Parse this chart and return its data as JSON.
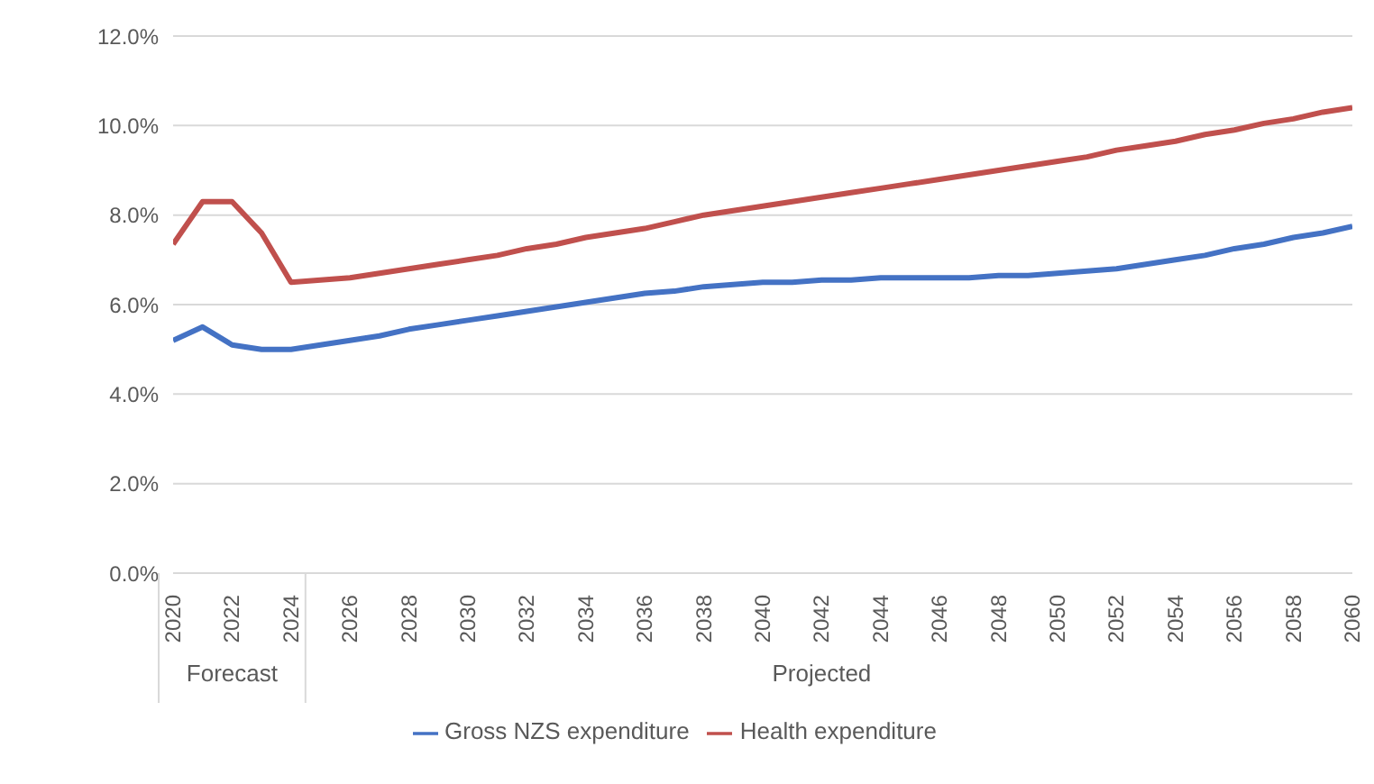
{
  "chart_data": {
    "type": "line",
    "categories": [
      "2020",
      null,
      "2022",
      null,
      "2024",
      null,
      "2026",
      null,
      "2028",
      null,
      "2030",
      null,
      "2032",
      null,
      "2034",
      null,
      "2036",
      null,
      "2038",
      null,
      "2040",
      null,
      "2042",
      null,
      "2044",
      null,
      "2046",
      null,
      "2048",
      null,
      "2050",
      null,
      "2052",
      null,
      "2054",
      null,
      "2056",
      null,
      "2058",
      null,
      "2060"
    ],
    "series": [
      {
        "name": "Gross NZS expenditure",
        "color": "#4472c4",
        "values": [
          5.2,
          5.5,
          5.1,
          5.0,
          5.0,
          5.1,
          5.2,
          5.3,
          5.45,
          5.55,
          5.65,
          5.75,
          5.85,
          5.95,
          6.05,
          6.15,
          6.25,
          6.3,
          6.4,
          6.45,
          6.5,
          6.5,
          6.55,
          6.55,
          6.6,
          6.6,
          6.6,
          6.6,
          6.65,
          6.65,
          6.7,
          6.75,
          6.8,
          6.9,
          7.0,
          7.1,
          7.25,
          7.35,
          7.5,
          7.6,
          7.75
        ]
      },
      {
        "name": "Health expenditure",
        "color": "#c0504d",
        "values": [
          7.35,
          8.3,
          8.3,
          7.6,
          6.5,
          6.55,
          6.6,
          6.7,
          6.8,
          6.9,
          7.0,
          7.1,
          7.25,
          7.35,
          7.5,
          7.6,
          7.7,
          7.85,
          8.0,
          8.1,
          8.2,
          8.3,
          8.4,
          8.5,
          8.6,
          8.7,
          8.8,
          8.9,
          9.0,
          9.1,
          9.2,
          9.3,
          9.45,
          9.55,
          9.65,
          9.8,
          9.9,
          10.05,
          10.15,
          10.3,
          10.4
        ]
      }
    ],
    "ylim": [
      0,
      12
    ],
    "yticks": [
      {
        "value": 0,
        "label": "0.0%"
      },
      {
        "value": 2,
        "label": "2.0%"
      },
      {
        "value": 4,
        "label": "4.0%"
      },
      {
        "value": 6,
        "label": "6.0%"
      },
      {
        "value": 8,
        "label": "8.0%"
      },
      {
        "value": 10,
        "label": "10.0%"
      },
      {
        "value": 12,
        "label": "12.0%"
      }
    ],
    "grid": "y",
    "legend": "bottom",
    "marker": "none",
    "line_style": "solid",
    "annotations": [
      "Forecast",
      "Projected"
    ]
  }
}
